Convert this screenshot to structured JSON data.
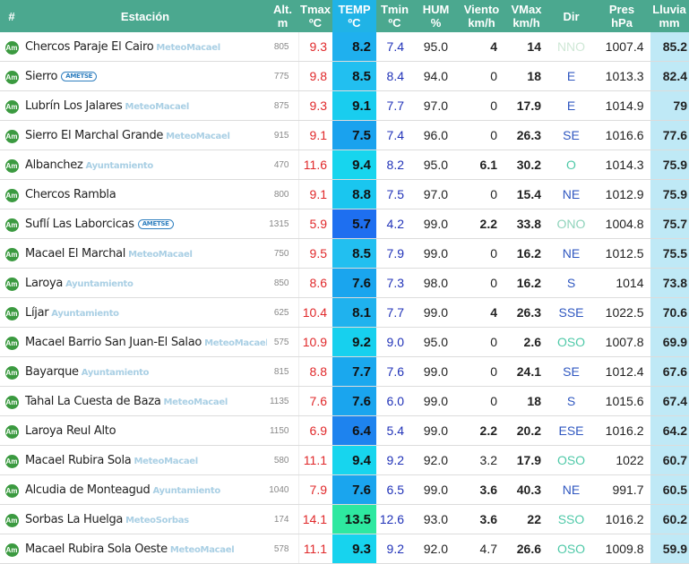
{
  "headers": {
    "num": "#",
    "station": "Estación",
    "alt": [
      "Alt.",
      "m"
    ],
    "tmax": [
      "Tmax",
      "ºC"
    ],
    "temp": [
      "TEMP",
      "ºC"
    ],
    "tmin": [
      "Tmin",
      "ºC"
    ],
    "hum": [
      "HUM",
      "%"
    ],
    "wind": [
      "Viento",
      "km/h"
    ],
    "vmax": [
      "VMax",
      "km/h"
    ],
    "dir": "Dir",
    "pres": [
      "Pres",
      "hPa"
    ],
    "rain": [
      "Lluvia",
      "mm"
    ]
  },
  "am_badge": "Am",
  "colors": {
    "header_bg": "#4ba88f",
    "rain_bg": "#bfe9f6",
    "tmax_color": "#e0282a",
    "tmin_color": "#2032b8",
    "temp_scale": {
      "cold": "#1e73e8",
      "mid": "#18d3ee",
      "warm": "#2de8a5"
    }
  },
  "rows": [
    {
      "town": "Chercos",
      "place": "Paraje El Cairo",
      "source": "MeteoMacael",
      "alt": "805",
      "tmax": "9.3",
      "temp": "8.2",
      "tmin": "7.4",
      "hum": "95.0",
      "wind": "4",
      "windb": true,
      "vmax": "14",
      "dir": "NNO",
      "dircolor": "#cfe8d6",
      "pres": "1007.4",
      "rain": "85.2",
      "tcolor": "#1fb0ee"
    },
    {
      "town": "Sierro",
      "place": "",
      "source": "AMETSE",
      "alt": "775",
      "tmax": "9.8",
      "temp": "8.5",
      "tmin": "8.4",
      "hum": "94.0",
      "wind": "0",
      "windb": false,
      "vmax": "18",
      "dir": "E",
      "dircolor": "#2f57c0",
      "pres": "1013.3",
      "rain": "82.4",
      "tcolor": "#22bff0"
    },
    {
      "town": "Lubrín",
      "place": "Los Jalares",
      "source": "MeteoMacael",
      "alt": "875",
      "tmax": "9.3",
      "temp": "9.1",
      "tmin": "7.7",
      "hum": "97.0",
      "wind": "0",
      "windb": false,
      "vmax": "17.9",
      "dir": "E",
      "dircolor": "#2f57c0",
      "pres": "1014.9",
      "rain": "79",
      "tcolor": "#19cdef"
    },
    {
      "town": "Sierro",
      "place": "El Marchal Grande",
      "source": "MeteoMacael",
      "alt": "915",
      "tmax": "9.1",
      "temp": "7.5",
      "tmin": "7.4",
      "hum": "96.0",
      "wind": "0",
      "windb": false,
      "vmax": "26.3",
      "dir": "SE",
      "dircolor": "#2f57c0",
      "pres": "1016.6",
      "rain": "77.6",
      "tcolor": "#1aa2ee"
    },
    {
      "town": "Albanchez",
      "place": "",
      "source": "Ayuntamiento",
      "alt": "470",
      "tmax": "11.6",
      "temp": "9.4",
      "tmin": "8.2",
      "hum": "95.0",
      "wind": "6.1",
      "windb": true,
      "vmax": "30.2",
      "dir": "O",
      "dircolor": "#4fc9a8",
      "pres": "1014.3",
      "rain": "75.9",
      "tcolor": "#17d5ee"
    },
    {
      "town": "Chercos",
      "place": "Rambla",
      "source": "",
      "alt": "800",
      "tmax": "9.1",
      "temp": "8.8",
      "tmin": "7.5",
      "hum": "97.0",
      "wind": "0",
      "windb": false,
      "vmax": "15.4",
      "dir": "NE",
      "dircolor": "#2f57c0",
      "pres": "1012.9",
      "rain": "75.9",
      "tcolor": "#1ac6ef"
    },
    {
      "town": "Suflí",
      "place": "Las Laborcicas",
      "source": "AMETSE",
      "alt": "1315",
      "tmax": "5.9",
      "temp": "5.7",
      "tmin": "4.2",
      "hum": "99.0",
      "wind": "2.2",
      "windb": true,
      "vmax": "33.8",
      "dir": "ONO",
      "dircolor": "#8fd3bb",
      "pres": "1004.8",
      "rain": "75.7",
      "tcolor": "#1e6ff0"
    },
    {
      "town": "Macael",
      "place": "El Marchal",
      "source": "MeteoMacael",
      "alt": "750",
      "tmax": "9.5",
      "temp": "8.5",
      "tmin": "7.9",
      "hum": "99.0",
      "wind": "0",
      "windb": false,
      "vmax": "16.2",
      "dir": "NE",
      "dircolor": "#2f57c0",
      "pres": "1012.5",
      "rain": "75.5",
      "tcolor": "#22bff0"
    },
    {
      "town": "Laroya",
      "place": "",
      "source": "Ayuntamiento",
      "alt": "850",
      "tmax": "8.6",
      "temp": "7.6",
      "tmin": "7.3",
      "hum": "98.0",
      "wind": "0",
      "windb": false,
      "vmax": "16.2",
      "dir": "S",
      "dircolor": "#2f57c0",
      "pres": "1014",
      "rain": "73.8",
      "tcolor": "#1aa5ee"
    },
    {
      "town": "Líjar",
      "place": "",
      "source": "Ayuntamiento",
      "alt": "625",
      "tmax": "10.4",
      "temp": "8.1",
      "tmin": "7.7",
      "hum": "99.0",
      "wind": "4",
      "windb": true,
      "vmax": "26.3",
      "dir": "SSE",
      "dircolor": "#2f57c0",
      "pres": "1022.5",
      "rain": "70.6",
      "tcolor": "#1fb2ee"
    },
    {
      "town": "Macael",
      "place": "Barrio San Juan-El Salao",
      "source": "MeteoMacael",
      "alt": "575",
      "tmax": "10.9",
      "temp": "9.2",
      "tmin": "9.0",
      "hum": "95.0",
      "wind": "0",
      "windb": false,
      "vmax": "2.6",
      "dir": "OSO",
      "dircolor": "#4fc9a8",
      "pres": "1007.8",
      "rain": "69.9",
      "tcolor": "#17d0ee"
    },
    {
      "town": "Bayarque",
      "place": "",
      "source": "Ayuntamiento",
      "alt": "815",
      "tmax": "8.8",
      "temp": "7.7",
      "tmin": "7.6",
      "hum": "99.0",
      "wind": "0",
      "windb": false,
      "vmax": "24.1",
      "dir": "SE",
      "dircolor": "#2f57c0",
      "pres": "1012.4",
      "rain": "67.6",
      "tcolor": "#1aa8ee"
    },
    {
      "town": "Tahal",
      "place": "La Cuesta de Baza",
      "source": "MeteoMacael",
      "alt": "1135",
      "tmax": "7.6",
      "temp": "7.6",
      "tmin": "6.0",
      "hum": "99.0",
      "wind": "0",
      "windb": false,
      "vmax": "18",
      "dir": "S",
      "dircolor": "#2f57c0",
      "pres": "1015.6",
      "rain": "67.4",
      "tcolor": "#1aa5ee"
    },
    {
      "town": "Laroya",
      "place": "Reul Alto",
      "source": "",
      "alt": "1150",
      "tmax": "6.9",
      "temp": "6.4",
      "tmin": "5.4",
      "hum": "99.0",
      "wind": "2.2",
      "windb": true,
      "vmax": "20.2",
      "dir": "ESE",
      "dircolor": "#2f57c0",
      "pres": "1016.2",
      "rain": "64.2",
      "tcolor": "#1e83ee"
    },
    {
      "town": "Macael",
      "place": "Rubira Sola",
      "source": "MeteoMacael",
      "alt": "580",
      "tmax": "11.1",
      "temp": "9.4",
      "tmin": "9.2",
      "hum": "92.0",
      "wind": "3.2",
      "windb": false,
      "vmax": "17.9",
      "dir": "OSO",
      "dircolor": "#4fc9a8",
      "pres": "1022",
      "rain": "60.7",
      "tcolor": "#17d5ee"
    },
    {
      "town": "Alcudia de Monteagud",
      "place": "",
      "source": "Ayuntamiento",
      "alt": "1040",
      "tmax": "7.9",
      "temp": "7.6",
      "tmin": "6.5",
      "hum": "99.0",
      "wind": "3.6",
      "windb": true,
      "vmax": "40.3",
      "dir": "NE",
      "dircolor": "#2f57c0",
      "pres": "991.7",
      "rain": "60.5",
      "tcolor": "#1aa5ee"
    },
    {
      "town": "Sorbas",
      "place": "La Huelga",
      "source": "MeteoSorbas",
      "alt": "174",
      "tmax": "14.1",
      "temp": "13.5",
      "tmin": "12.6",
      "hum": "93.0",
      "wind": "3.6",
      "windb": true,
      "vmax": "22",
      "dir": "SSO",
      "dircolor": "#4fc9a8",
      "pres": "1016.2",
      "rain": "60.2",
      "tcolor": "#2ee8a0"
    },
    {
      "town": "Macael",
      "place": "Rubira Sola Oeste",
      "source": "MeteoMacael",
      "alt": "578",
      "tmax": "11.1",
      "temp": "9.3",
      "tmin": "9.2",
      "hum": "92.0",
      "wind": "4.7",
      "windb": false,
      "vmax": "26.6",
      "dir": "OSO",
      "dircolor": "#4fc9a8",
      "pres": "1009.8",
      "rain": "59.9",
      "tcolor": "#17d3ee"
    }
  ]
}
